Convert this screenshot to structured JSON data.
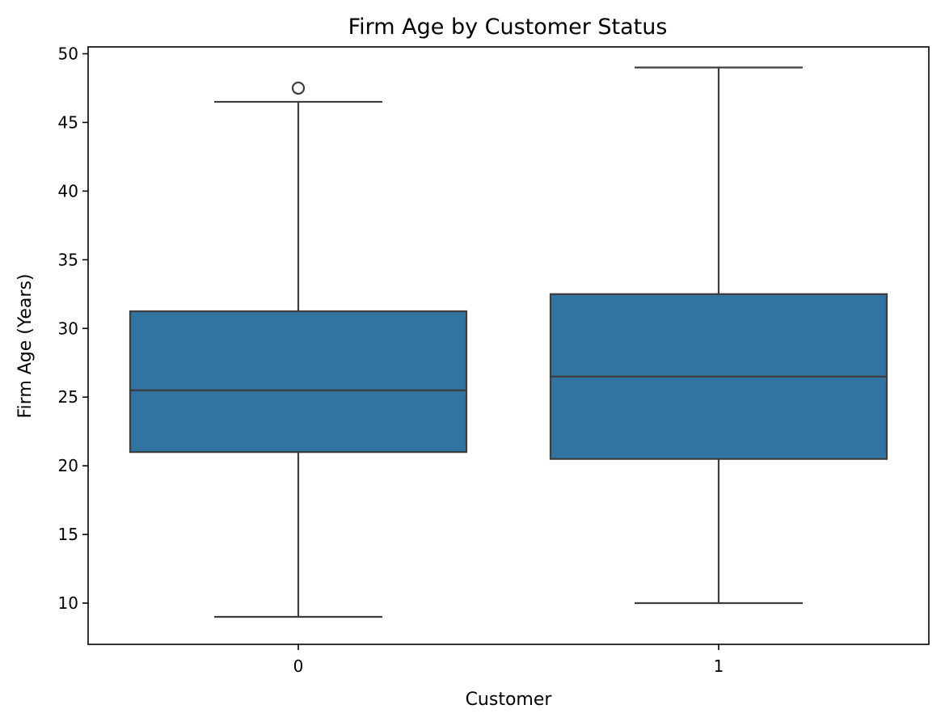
{
  "chart_data": {
    "type": "box",
    "title": "Firm Age by Customer Status",
    "xlabel": "Customer",
    "ylabel": "Firm Age (Years)",
    "categories": [
      "0",
      "1"
    ],
    "ylim": [
      7.0,
      50.5
    ],
    "yticks": [
      10,
      15,
      20,
      25,
      30,
      35,
      40,
      45,
      50
    ],
    "grid": false,
    "box_color": "#3274a1",
    "line_color": "#3d3d3d",
    "boxes": [
      {
        "category": "0",
        "whisker_low": 9,
        "q1": 21,
        "median": 25.5,
        "q3": 31.25,
        "whisker_high": 46.5,
        "outliers": [
          47.5
        ]
      },
      {
        "category": "1",
        "whisker_low": 10,
        "q1": 20.5,
        "median": 26.5,
        "q3": 32.5,
        "whisker_high": 49,
        "outliers": []
      }
    ]
  }
}
